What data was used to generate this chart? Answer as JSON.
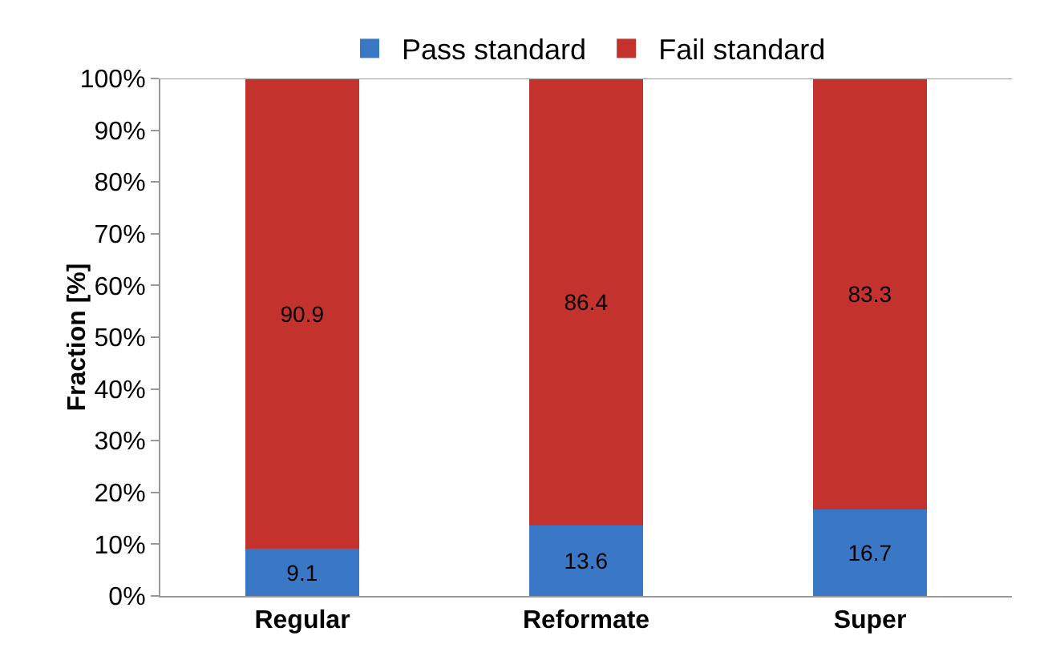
{
  "chart_data": {
    "type": "bar",
    "stacked": true,
    "ylabel": "Fraction [%]",
    "categories": [
      "Regular",
      "Reformate",
      "Super"
    ],
    "series": [
      {
        "name": "Pass standard",
        "color": "#3a78c6",
        "values": [
          9.1,
          13.6,
          16.7
        ]
      },
      {
        "name": "Fail standard",
        "color": "#c4322e",
        "values": [
          90.9,
          86.4,
          83.3
        ]
      }
    ],
    "ylim": [
      0,
      100
    ],
    "yticks": [
      {
        "value": 0,
        "label": "0%"
      },
      {
        "value": 10,
        "label": "10%"
      },
      {
        "value": 20,
        "label": "20%"
      },
      {
        "value": 30,
        "label": "30%"
      },
      {
        "value": 40,
        "label": "40%"
      },
      {
        "value": 50,
        "label": "50%"
      },
      {
        "value": 60,
        "label": "60%"
      },
      {
        "value": 70,
        "label": "70%"
      },
      {
        "value": 80,
        "label": "80%"
      },
      {
        "value": 90,
        "label": "90%"
      },
      {
        "value": 100,
        "label": "100%"
      }
    ],
    "data_labels": true,
    "grid": false,
    "legend": "top"
  }
}
